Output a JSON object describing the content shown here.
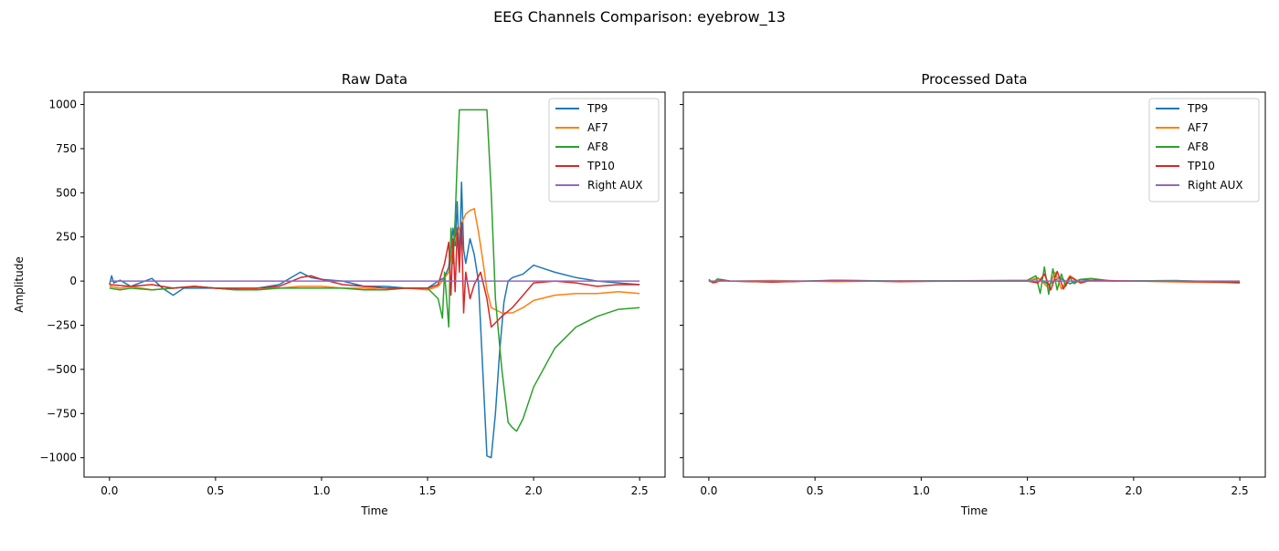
{
  "figure": {
    "suptitle": "EEG Channels Comparison: eyebrow_13"
  },
  "chart_data": [
    {
      "type": "line",
      "title": "Raw Data",
      "xlabel": "Time",
      "ylabel": "Amplitude",
      "xlim": [
        -0.12,
        2.62
      ],
      "ylim": [
        -1110,
        1070
      ],
      "xticks": [
        0.0,
        0.5,
        1.0,
        1.5,
        2.0,
        2.5
      ],
      "xtick_labels": [
        "0.0",
        "0.5",
        "1.0",
        "1.5",
        "2.0",
        "2.5"
      ],
      "yticks": [
        1000,
        750,
        500,
        250,
        0,
        -250,
        -500,
        -750,
        -1000
      ],
      "ytick_labels": [
        "1000",
        "750",
        "500",
        "250",
        "0",
        "−250",
        "−500",
        "−750",
        "−1000"
      ],
      "legend": "top-right",
      "series": [
        {
          "name": "TP9",
          "color": "#1f77b4",
          "x": [
            0.0,
            0.01,
            0.02,
            0.05,
            0.1,
            0.2,
            0.25,
            0.3,
            0.35,
            0.5,
            0.65,
            0.8,
            0.9,
            0.95,
            1.0,
            1.1,
            1.2,
            1.3,
            1.4,
            1.5,
            1.55,
            1.58,
            1.6,
            1.62,
            1.63,
            1.64,
            1.65,
            1.66,
            1.67,
            1.68,
            1.7,
            1.72,
            1.74,
            1.76,
            1.78,
            1.8,
            1.82,
            1.84,
            1.86,
            1.88,
            1.9,
            1.95,
            2.0,
            2.05,
            2.1,
            2.2,
            2.3,
            2.4,
            2.5
          ],
          "y": [
            -20,
            30,
            -10,
            5,
            -30,
            15,
            -40,
            -80,
            -40,
            -40,
            -50,
            -20,
            50,
            20,
            10,
            0,
            -30,
            -30,
            -40,
            -40,
            0,
            20,
            80,
            300,
            200,
            450,
            100,
            560,
            180,
            100,
            240,
            150,
            0,
            -500,
            -990,
            -1000,
            -750,
            -400,
            -120,
            0,
            20,
            40,
            90,
            70,
            50,
            20,
            0,
            -10,
            -20
          ]
        },
        {
          "name": "AF7",
          "color": "#ff7f0e",
          "x": [
            0.0,
            0.05,
            0.1,
            0.2,
            0.3,
            0.4,
            0.5,
            0.6,
            0.7,
            0.8,
            0.9,
            1.0,
            1.1,
            1.2,
            1.3,
            1.4,
            1.5,
            1.55,
            1.6,
            1.62,
            1.65,
            1.68,
            1.7,
            1.72,
            1.74,
            1.76,
            1.78,
            1.8,
            1.85,
            1.9,
            1.95,
            2.0,
            2.1,
            2.2,
            2.3,
            2.4,
            2.5
          ],
          "y": [
            -30,
            -40,
            -30,
            -50,
            -40,
            -30,
            -40,
            -50,
            -40,
            -40,
            -30,
            -30,
            -40,
            -40,
            -50,
            -40,
            -50,
            -30,
            50,
            200,
            300,
            380,
            400,
            410,
            280,
            120,
            -50,
            -150,
            -180,
            -180,
            -150,
            -110,
            -80,
            -70,
            -70,
            -60,
            -70
          ]
        },
        {
          "name": "AF8",
          "color": "#2ca02c",
          "x": [
            0.0,
            0.05,
            0.1,
            0.2,
            0.3,
            0.4,
            0.5,
            0.6,
            0.7,
            0.8,
            0.9,
            1.0,
            1.1,
            1.2,
            1.3,
            1.4,
            1.5,
            1.55,
            1.57,
            1.58,
            1.6,
            1.61,
            1.62,
            1.63,
            1.64,
            1.65,
            1.66,
            1.7,
            1.75,
            1.78,
            1.8,
            1.82,
            1.85,
            1.88,
            1.9,
            1.92,
            1.95,
            2.0,
            2.1,
            2.2,
            2.3,
            2.4,
            2.5
          ],
          "y": [
            -40,
            -50,
            -40,
            -50,
            -40,
            -30,
            -40,
            -50,
            -50,
            -40,
            -40,
            -40,
            -40,
            -50,
            -50,
            -40,
            -40,
            -100,
            -210,
            50,
            -260,
            300,
            100,
            350,
            680,
            970,
            970,
            970,
            970,
            970,
            500,
            -100,
            -500,
            -800,
            -830,
            -850,
            -780,
            -600,
            -380,
            -260,
            -200,
            -160,
            -150
          ]
        },
        {
          "name": "TP10",
          "color": "#d62728",
          "x": [
            0.0,
            0.1,
            0.2,
            0.3,
            0.4,
            0.5,
            0.6,
            0.7,
            0.8,
            0.9,
            0.95,
            1.0,
            1.1,
            1.2,
            1.3,
            1.4,
            1.5,
            1.55,
            1.58,
            1.6,
            1.61,
            1.62,
            1.63,
            1.64,
            1.65,
            1.66,
            1.67,
            1.68,
            1.7,
            1.72,
            1.75,
            1.78,
            1.8,
            1.85,
            1.9,
            2.0,
            2.1,
            2.2,
            2.3,
            2.4,
            2.5
          ],
          "y": [
            -20,
            -30,
            -20,
            -40,
            -30,
            -40,
            -40,
            -40,
            -30,
            20,
            30,
            10,
            -20,
            -30,
            -40,
            -40,
            -40,
            -20,
            100,
            220,
            -80,
            240,
            -60,
            300,
            50,
            330,
            -180,
            50,
            -100,
            -20,
            50,
            -100,
            -260,
            -200,
            -150,
            -10,
            0,
            -10,
            -30,
            -20,
            -20
          ]
        },
        {
          "name": "Right AUX",
          "color": "#9467bd",
          "x": [
            0.0,
            2.5
          ],
          "y": [
            0,
            0
          ]
        }
      ]
    },
    {
      "type": "line",
      "title": "Processed Data",
      "xlabel": "Time",
      "ylabel": "",
      "xlim": [
        -0.12,
        2.62
      ],
      "ylim": [
        -1110,
        1070
      ],
      "xticks": [
        0.0,
        0.5,
        1.0,
        1.5,
        2.0,
        2.5
      ],
      "xtick_labels": [
        "0.0",
        "0.5",
        "1.0",
        "1.5",
        "2.0",
        "2.5"
      ],
      "yticks": [
        1000,
        750,
        500,
        250,
        0,
        -250,
        -500,
        -750,
        -1000
      ],
      "ytick_labels": [],
      "legend": "top-right",
      "series": [
        {
          "name": "TP9",
          "color": "#1f77b4",
          "x": [
            0.0,
            0.02,
            0.04,
            0.1,
            0.3,
            0.6,
            0.9,
            1.2,
            1.5,
            1.55,
            1.6,
            1.65,
            1.7,
            1.75,
            1.8,
            1.9,
            2.2,
            2.5
          ],
          "y": [
            5,
            -10,
            8,
            0,
            -4,
            4,
            0,
            2,
            0,
            15,
            -20,
            20,
            -15,
            10,
            5,
            0,
            2,
            -5
          ]
        },
        {
          "name": "AF7",
          "color": "#ff7f0e",
          "x": [
            0.0,
            0.02,
            0.05,
            0.1,
            0.3,
            0.6,
            0.9,
            1.2,
            1.5,
            1.55,
            1.6,
            1.63,
            1.66,
            1.7,
            1.75,
            1.8,
            2.0,
            2.5
          ],
          "y": [
            5,
            -8,
            10,
            0,
            3,
            -3,
            2,
            0,
            0,
            20,
            -40,
            50,
            -45,
            30,
            -10,
            5,
            0,
            -10
          ]
        },
        {
          "name": "AF8",
          "color": "#2ca02c",
          "x": [
            0.0,
            0.02,
            0.04,
            0.1,
            0.3,
            0.6,
            0.9,
            1.2,
            1.5,
            1.54,
            1.56,
            1.58,
            1.6,
            1.62,
            1.64,
            1.66,
            1.68,
            1.7,
            1.72,
            1.75,
            1.8,
            1.9,
            2.2,
            2.5
          ],
          "y": [
            10,
            -10,
            12,
            0,
            -5,
            5,
            0,
            2,
            5,
            30,
            -70,
            80,
            -75,
            70,
            -50,
            40,
            -30,
            20,
            -15,
            10,
            15,
            0,
            3,
            -10
          ]
        },
        {
          "name": "TP10",
          "color": "#d62728",
          "x": [
            0.0,
            0.03,
            0.06,
            0.1,
            0.3,
            0.6,
            0.9,
            1.2,
            1.5,
            1.55,
            1.58,
            1.61,
            1.64,
            1.67,
            1.7,
            1.75,
            1.8,
            2.0,
            2.5
          ],
          "y": [
            0,
            -8,
            6,
            0,
            -5,
            3,
            -3,
            0,
            0,
            -10,
            40,
            -50,
            55,
            -45,
            25,
            -10,
            5,
            0,
            -5
          ]
        },
        {
          "name": "Right AUX",
          "color": "#9467bd",
          "x": [
            0.0,
            2.5
          ],
          "y": [
            0,
            0
          ]
        }
      ]
    }
  ]
}
